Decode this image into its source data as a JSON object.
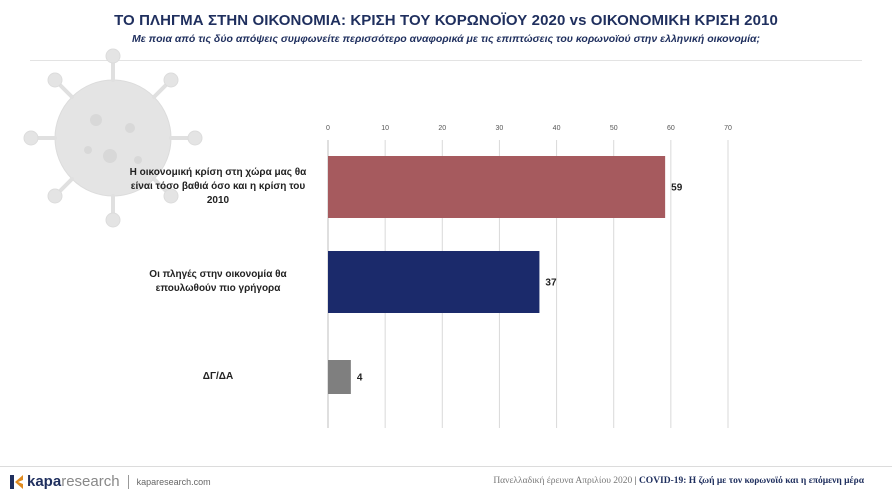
{
  "header": {
    "title": "ΤΟ ΠΛΗΓΜΑ ΣΤΗΝ ΟΙΚΟΝΟΜΙΑ: ΚΡΙΣΗ ΤΟΥ ΚΟΡΩΝΟΪΟΥ 2020 vs ΟΙΚΟΝΟΜΙΚΗ ΚΡΙΣΗ 2010",
    "subtitle": "Με ποια από τις δύο απόψεις συμφωνείτε περισσότερο αναφορικά με τις επιπτώσεις του κορωνοϊού στην ελληνική οικονομία;"
  },
  "chart_data": {
    "type": "bar",
    "orientation": "horizontal",
    "categories": [
      "Η οικονομική κρίση στη χώρα μας θα είναι τόσο βαθιά όσο και η κρίση του 2010",
      "Οι πληγές στην οικονομία θα επουλωθούν πιο γρήγορα",
      "ΔΓ/ΔΑ"
    ],
    "category_lines": [
      [
        "Η οικονομική κρίση στη χώρα μας θα",
        "είναι τόσο βαθιά όσο και η κρίση του",
        "2010"
      ],
      [
        "Οι πληγές στην οικονομία θα",
        "επουλωθούν πιο γρήγορα"
      ],
      [
        "ΔΓ/ΔΑ"
      ]
    ],
    "values": [
      59,
      37,
      4
    ],
    "bar_colors": [
      "#a65a5e",
      "#1b2a6b",
      "#7f7f7f"
    ],
    "xlim": [
      0,
      70
    ],
    "xticks": [
      0,
      10,
      20,
      30,
      40,
      50,
      60,
      70
    ],
    "grid": true,
    "axis_position": "top",
    "data_labels": true
  },
  "footer": {
    "brand_bold": "kapa",
    "brand_light": "research",
    "website": "kaparesearch.com",
    "survey": "Πανελλαδική έρευνα Απριλίου 2020",
    "separator": "|",
    "topic": "COVID-19: Η ζωή με τον κορωνοϊό και η επόμενη μέρα"
  },
  "colors": {
    "title": "#1f2f5e",
    "grid": "#d9d9d9",
    "brand": "#1f2f5e",
    "brand_accent": "#e08a1e"
  }
}
